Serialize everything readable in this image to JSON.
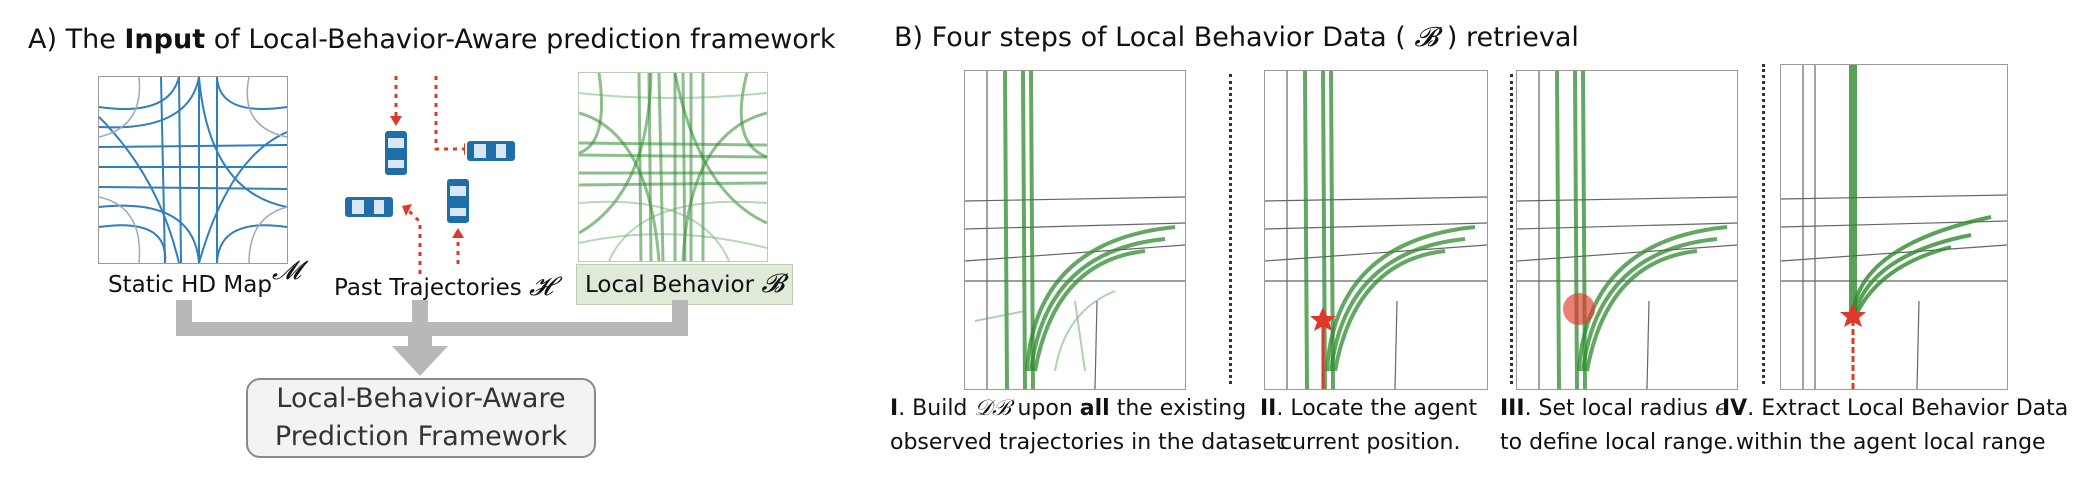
{
  "panel_a": {
    "title_prefix": "A) The ",
    "title_bold": "Input",
    "title_suffix": " of Local-Behavior-Aware prediction framework",
    "map_label": "Static HD Map",
    "map_symbol": "𝓜",
    "traj_label": "Past Trajectories",
    "traj_symbol": "𝓗",
    "behavior_label": "Local Behavior",
    "behavior_symbol": "𝓑",
    "framework_line1": "Local-Behavior-Aware",
    "framework_line2": "Prediction Framework"
  },
  "panel_b": {
    "title_prefix": "B) Four steps of Local Behavior Data (",
    "title_symbol": "𝓑",
    "title_suffix": ") retrieval",
    "steps": [
      {
        "num": "I",
        "line1_a": ". Build ",
        "symbol": "𝒟ℬ",
        "line1_b": " upon ",
        "line1_bold": "all",
        "line1_c": " the existing",
        "line2": "observed trajectories in the dataset"
      },
      {
        "num": "II",
        "line1": ". Locate the agent",
        "line2": "current position."
      },
      {
        "num": "III",
        "line1": ". Set local radius ",
        "symbol": "ϵ",
        "line2": "to define local range."
      },
      {
        "num": "IV",
        "line1": ". Extract Local Behavior Data",
        "line2": "within the agent local range"
      }
    ]
  },
  "colors": {
    "map_blue": "#2f7fc0",
    "car_blue": "#1f6ea8",
    "trajectory_green": "#2e8b2e",
    "arrow_red": "#e0392b",
    "connector_gray": "#b8b8b8"
  }
}
